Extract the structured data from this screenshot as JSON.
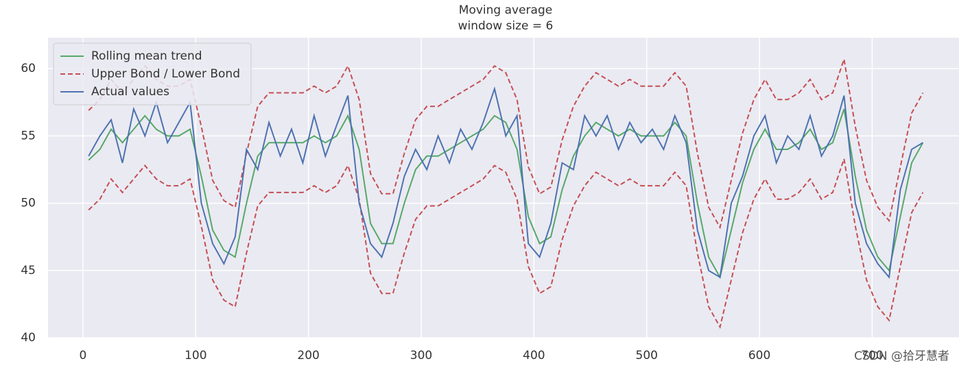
{
  "chart_data": {
    "type": "line",
    "title": "Moving average",
    "subtitle": "window size = 6",
    "watermark": "CSDN @拾牙慧者",
    "x": [
      5,
      15,
      25,
      35,
      45,
      55,
      65,
      75,
      85,
      95,
      105,
      115,
      125,
      135,
      145,
      155,
      165,
      175,
      185,
      195,
      205,
      215,
      225,
      235,
      245,
      255,
      265,
      275,
      285,
      295,
      305,
      315,
      325,
      335,
      345,
      355,
      365,
      375,
      385,
      395,
      405,
      415,
      425,
      435,
      445,
      455,
      465,
      475,
      485,
      495,
      505,
      515,
      525,
      535,
      545,
      555,
      565,
      575,
      585,
      595,
      605,
      615,
      625,
      635,
      645,
      655,
      665,
      675,
      685,
      695,
      705,
      715,
      725,
      735,
      745
    ],
    "series": [
      {
        "name": "Rolling mean trend",
        "color": "#55a868",
        "dashed": false,
        "values": [
          53.2,
          54,
          55.5,
          54.5,
          55.5,
          56.5,
          55.5,
          55,
          55,
          55.5,
          52,
          48,
          46.5,
          46,
          50,
          53.5,
          54.5,
          54.5,
          54.5,
          54.5,
          55,
          54.5,
          55,
          56.5,
          54,
          48.5,
          47,
          47,
          50,
          52.5,
          53.5,
          53.5,
          54,
          54.5,
          55,
          55.5,
          56.5,
          56,
          54,
          49,
          47,
          47.5,
          51,
          53.5,
          55,
          56,
          55.5,
          55,
          55.5,
          55,
          55,
          55,
          56,
          55,
          50,
          46,
          44.5,
          48,
          51.5,
          54,
          55.5,
          54,
          54,
          54.5,
          55.5,
          54,
          54.5,
          57,
          52,
          48,
          46,
          45,
          49,
          53,
          54.5
        ]
      },
      {
        "name": "Upper Bond / Lower Bond",
        "color": "#c44e52",
        "dashed": true,
        "values": [
          56.9,
          57.7,
          59.2,
          58.2,
          59.2,
          60.2,
          59.2,
          58.7,
          58.7,
          59.2,
          55.7,
          51.7,
          50.2,
          49.7,
          53.7,
          57.2,
          58.2,
          58.2,
          58.2,
          58.2,
          58.7,
          58.2,
          58.7,
          60.2,
          57.7,
          52.2,
          50.7,
          50.7,
          53.7,
          56.2,
          57.2,
          57.2,
          57.7,
          58.2,
          58.7,
          59.2,
          60.2,
          59.7,
          57.7,
          52.7,
          50.7,
          51.2,
          54.7,
          57.2,
          58.7,
          59.7,
          59.2,
          58.7,
          59.2,
          58.7,
          58.7,
          58.7,
          59.7,
          58.7,
          53.7,
          49.7,
          48.2,
          51.7,
          55.2,
          57.7,
          59.2,
          57.7,
          57.7,
          58.2,
          59.2,
          57.7,
          58.2,
          60.7,
          55.7,
          51.7,
          49.7,
          48.7,
          52.7,
          56.7,
          58.2
        ]
      },
      {
        "color": "#c44e52",
        "dashed": true,
        "values": [
          49.5,
          50.3,
          51.8,
          50.8,
          51.8,
          52.8,
          51.8,
          51.3,
          51.3,
          51.8,
          48.3,
          44.3,
          42.8,
          42.3,
          46.3,
          49.8,
          50.8,
          50.8,
          50.8,
          50.8,
          51.3,
          50.8,
          51.3,
          52.8,
          50.3,
          44.8,
          43.3,
          43.3,
          46.3,
          48.8,
          49.8,
          49.8,
          50.3,
          50.8,
          51.3,
          51.8,
          52.8,
          52.3,
          50.3,
          45.3,
          43.3,
          43.8,
          47.3,
          49.8,
          51.3,
          52.3,
          51.8,
          51.3,
          51.8,
          51.3,
          51.3,
          51.3,
          52.3,
          51.3,
          46.3,
          42.3,
          40.8,
          44.3,
          47.8,
          50.3,
          51.8,
          50.3,
          50.3,
          50.8,
          51.8,
          50.3,
          50.8,
          53.3,
          48.3,
          44.3,
          42.3,
          41.3,
          45.3,
          49.3,
          50.8
        ]
      },
      {
        "name": "Actual values",
        "color": "#4c72b0",
        "dashed": false,
        "values": [
          53.5,
          55,
          56.2,
          53,
          57,
          55,
          57.5,
          54.5,
          56,
          57.5,
          50,
          47,
          45.5,
          47.5,
          54,
          52.5,
          56,
          53.5,
          55.5,
          53,
          56.5,
          53.5,
          55.8,
          58,
          50,
          47,
          46,
          48.5,
          52,
          54,
          52.5,
          55,
          53,
          55.5,
          54,
          56,
          58.5,
          55,
          56.5,
          47,
          46,
          48.5,
          53,
          52.5,
          56.5,
          55,
          56.5,
          54,
          56,
          54.5,
          55.5,
          54,
          56.5,
          54.5,
          48,
          45,
          44.5,
          50,
          52,
          55,
          56.5,
          53,
          55,
          54,
          56.5,
          53.5,
          55,
          58,
          50,
          47,
          45.5,
          44.5,
          51,
          54,
          54.5
        ]
      }
    ],
    "xlim": [
      -31,
      777
    ],
    "ylim": [
      40,
      62.3
    ],
    "xticks": [
      0,
      100,
      200,
      300,
      400,
      500,
      600,
      700
    ],
    "yticks": [
      40,
      45,
      50,
      55,
      60
    ],
    "grid": true,
    "legend": "upper left"
  }
}
